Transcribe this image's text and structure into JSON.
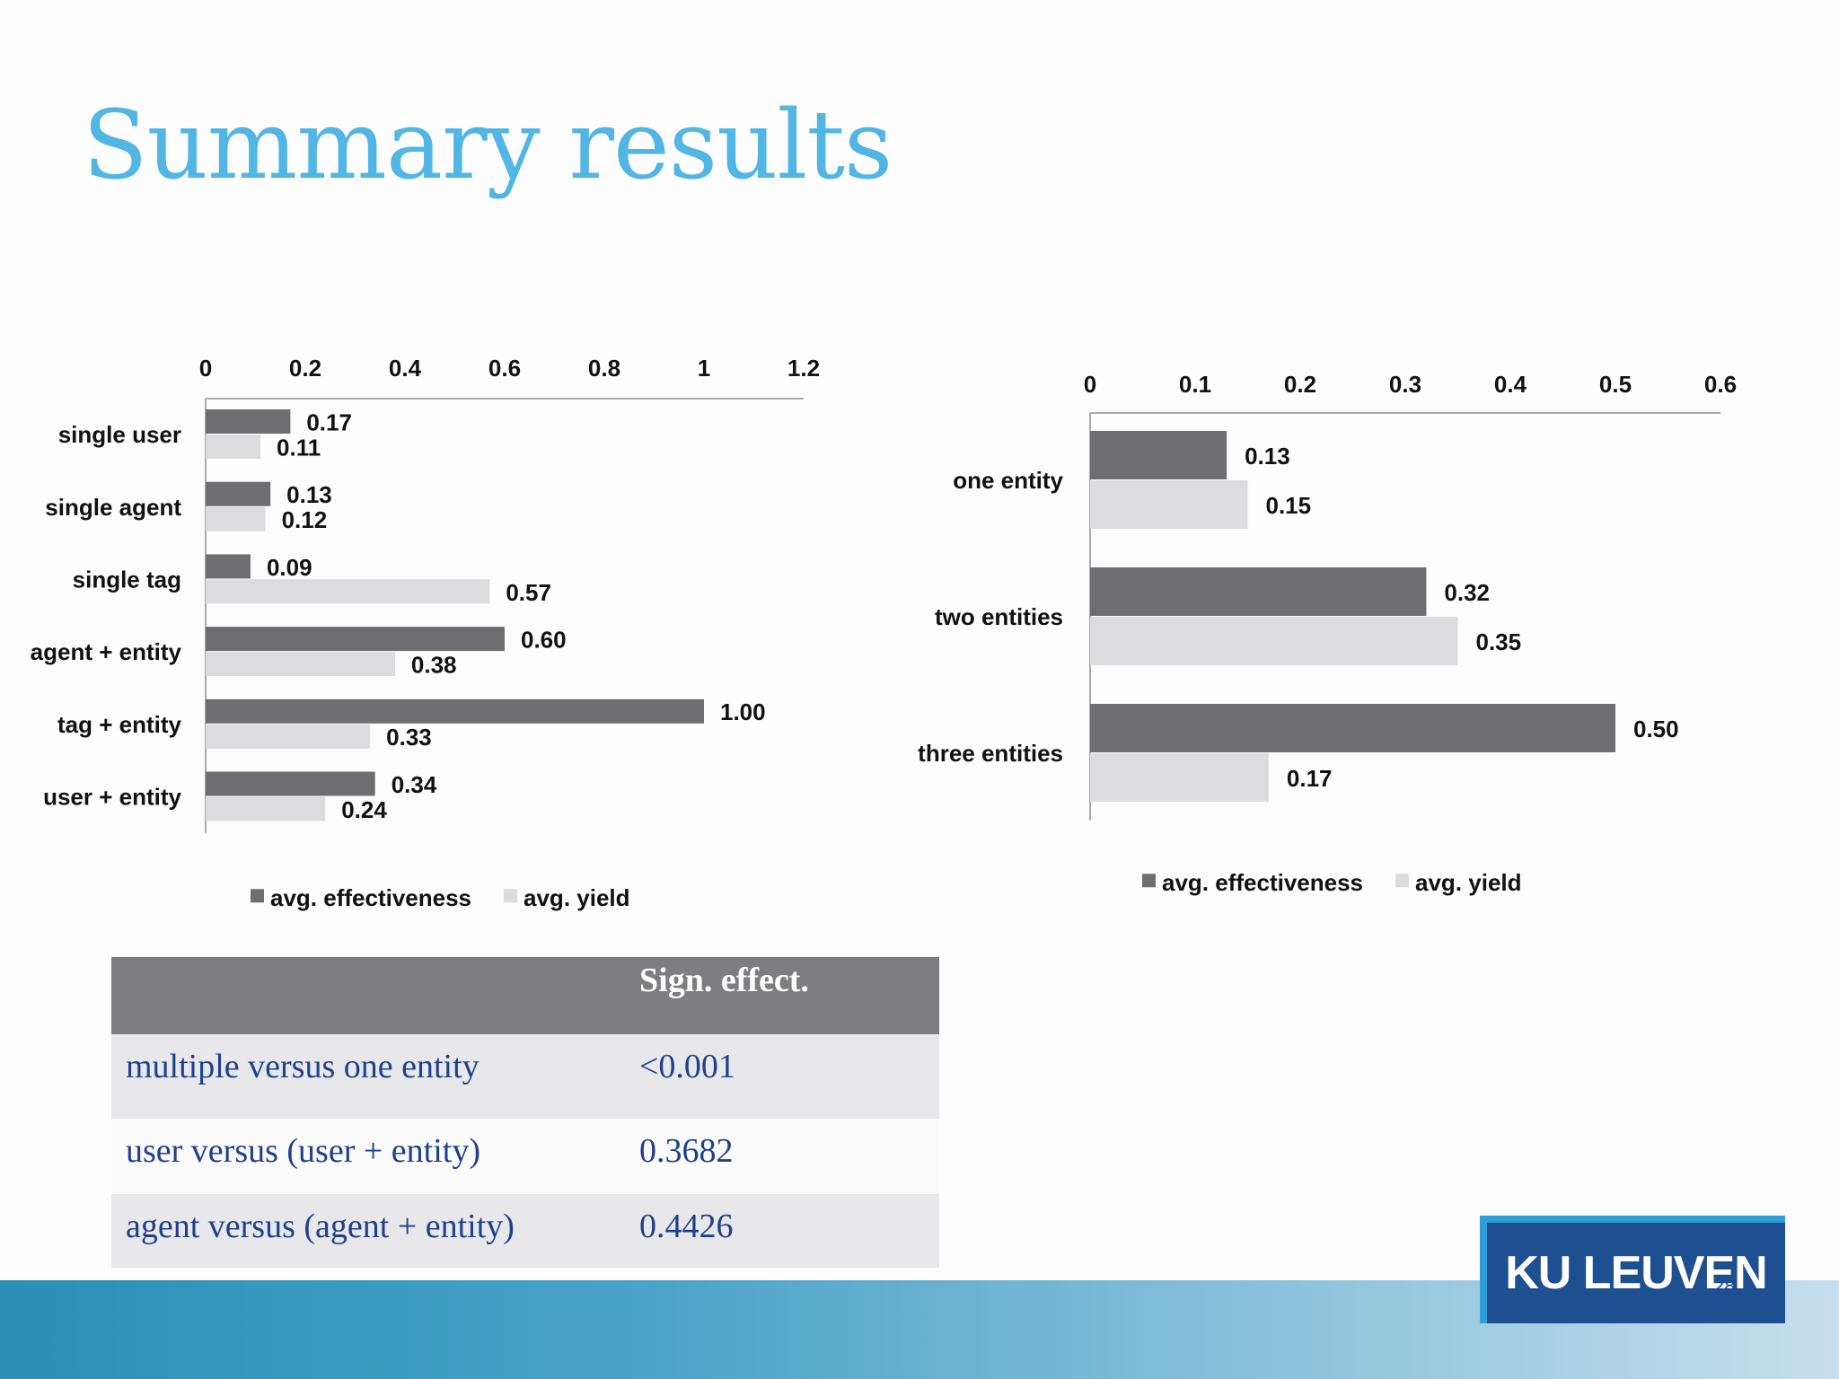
{
  "slide": {
    "title": "Summary results",
    "page_number": "28"
  },
  "chart_data": [
    {
      "type": "bar",
      "orientation": "horizontal",
      "categories": [
        "single user",
        "single agent",
        "single tag",
        "agent + entity",
        "tag + entity",
        "user + entity"
      ],
      "series": [
        {
          "name": "avg. effectiveness",
          "values": [
            0.17,
            0.13,
            0.09,
            0.6,
            1.0,
            0.34
          ],
          "labels": [
            "0.17",
            "0.13",
            "0.09",
            "0.60",
            "1.00",
            "0.34"
          ],
          "color": "#6e6d70"
        },
        {
          "name": "avg. yield",
          "values": [
            0.11,
            0.12,
            0.57,
            0.38,
            0.33,
            0.24
          ],
          "labels": [
            "0.11",
            "0.12",
            "0.57",
            "0.38",
            "0.33",
            "0.24"
          ],
          "color": "#dcdcde"
        }
      ],
      "xlim": [
        0,
        1.2
      ],
      "ticks": [
        "0",
        "0.2",
        "0.4",
        "0.6",
        "0.8",
        "1",
        "1.2"
      ],
      "tick_values": [
        0,
        0.2,
        0.4,
        0.6,
        0.8,
        1.0,
        1.2
      ],
      "axis_position": "top",
      "legend": "bottom",
      "grid": false
    },
    {
      "type": "bar",
      "orientation": "horizontal",
      "categories": [
        "one entity",
        "two entities",
        "three entities"
      ],
      "series": [
        {
          "name": "avg. effectiveness",
          "values": [
            0.13,
            0.32,
            0.5
          ],
          "labels": [
            "0.13",
            "0.32",
            "0.50"
          ],
          "color": "#6e6d70"
        },
        {
          "name": "avg. yield",
          "values": [
            0.15,
            0.35,
            0.17
          ],
          "labels": [
            "0.15",
            "0.35",
            "0.17"
          ],
          "color": "#dcdcde"
        }
      ],
      "xlim": [
        0,
        0.6
      ],
      "ticks": [
        "0",
        "0.1",
        "0.2",
        "0.3",
        "0.4",
        "0.5",
        "0.6"
      ],
      "tick_values": [
        0,
        0.1,
        0.2,
        0.3,
        0.4,
        0.5,
        0.6
      ],
      "axis_position": "top",
      "legend": "bottom",
      "grid": false
    }
  ],
  "table": {
    "header": [
      "",
      "Sign. effect."
    ],
    "rows": [
      [
        "multiple versus one entity",
        "<0.001"
      ],
      [
        "user versus (user + entity)",
        "0.3682"
      ],
      [
        "agent versus (agent + entity)",
        "0.4426"
      ]
    ]
  },
  "logo": {
    "text": "KU LEUVEN"
  }
}
